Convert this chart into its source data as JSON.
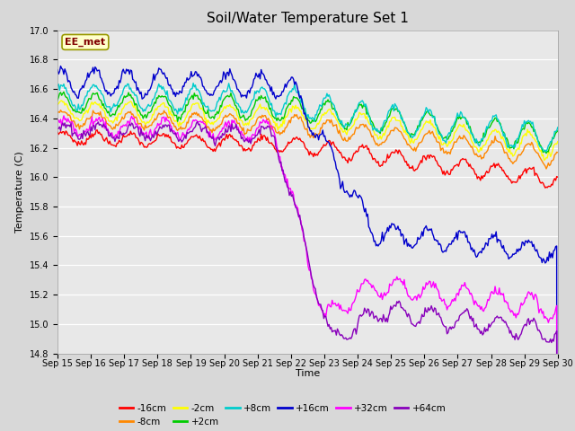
{
  "title": "Soil/Water Temperature Set 1",
  "xlabel": "Time",
  "ylabel": "Temperature (C)",
  "annotation": "EE_met",
  "ylim": [
    14.8,
    17.0
  ],
  "yticks": [
    14.8,
    15.0,
    15.2,
    15.4,
    15.6,
    15.8,
    16.0,
    16.2,
    16.4,
    16.6,
    16.8,
    17.0
  ],
  "xtick_labels": [
    "Sep 15",
    "Sep 16",
    "Sep 17",
    "Sep 18",
    "Sep 19",
    "Sep 20",
    "Sep 21",
    "Sep 22",
    "Sep 23",
    "Sep 24",
    "Sep 25",
    "Sep 26",
    "Sep 27",
    "Sep 28",
    "Sep 29",
    "Sep 30"
  ],
  "series_labels": [
    "-16cm",
    "-8cm",
    "-2cm",
    "+2cm",
    "+8cm",
    "+16cm",
    "+32cm",
    "+64cm"
  ],
  "series_colors": [
    "#ff0000",
    "#ff8800",
    "#ffff00",
    "#00cc00",
    "#00cccc",
    "#0000cc",
    "#ff00ff",
    "#8800bb"
  ],
  "background_color": "#d8d8d8",
  "plot_bg_color": "#e8e8e8",
  "title_fontsize": 11,
  "n_points": 480,
  "figsize": [
    6.4,
    4.8
  ],
  "dpi": 100
}
